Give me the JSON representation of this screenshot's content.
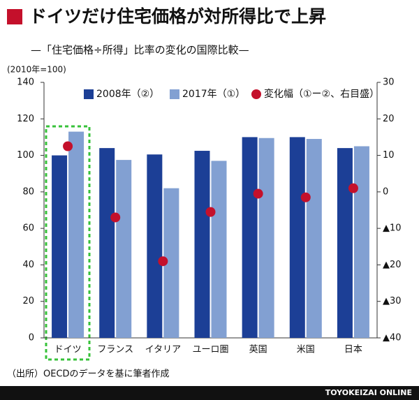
{
  "chart_data": {
    "type": "bar",
    "title": "ドイツだけ住宅価格が対所得比で上昇",
    "subtitle": "—「住宅価格÷所得」比率の変化の国際比較—",
    "y_label": "(2010年=100)",
    "source": "（出所）OECDのデータを基に筆者作成",
    "credit": "TOYOKEIZAI ONLINE",
    "categories": [
      "ドイツ",
      "フランス",
      "イタリア",
      "ユーロ圏",
      "英国",
      "米国",
      "日本"
    ],
    "series": [
      {
        "name": "2008年（②）",
        "color": "#1c3f96",
        "values": [
          100,
          104,
          100.5,
          102.5,
          110,
          110,
          104
        ]
      },
      {
        "name": "2017年（①）",
        "color": "#82a0d2",
        "values": [
          113,
          97.5,
          82,
          97,
          109.5,
          109,
          105
        ]
      },
      {
        "name": "変化幅（①ー②、右目盛）",
        "color": "#c4102b",
        "values": [
          12.5,
          -7,
          -19,
          -5.5,
          -0.5,
          -1.5,
          1
        ],
        "axis": "y2"
      }
    ],
    "ylim": [
      0,
      140
    ],
    "yticks": [
      0,
      20,
      40,
      60,
      80,
      100,
      120,
      140
    ],
    "y2lim": [
      -40,
      30
    ],
    "y2ticks": [
      {
        "value": -40,
        "label": "▲40"
      },
      {
        "value": -30,
        "label": "▲30"
      },
      {
        "value": -20,
        "label": "▲20"
      },
      {
        "value": -10,
        "label": "▲10"
      },
      0,
      10,
      20,
      30
    ],
    "grid": false
  }
}
